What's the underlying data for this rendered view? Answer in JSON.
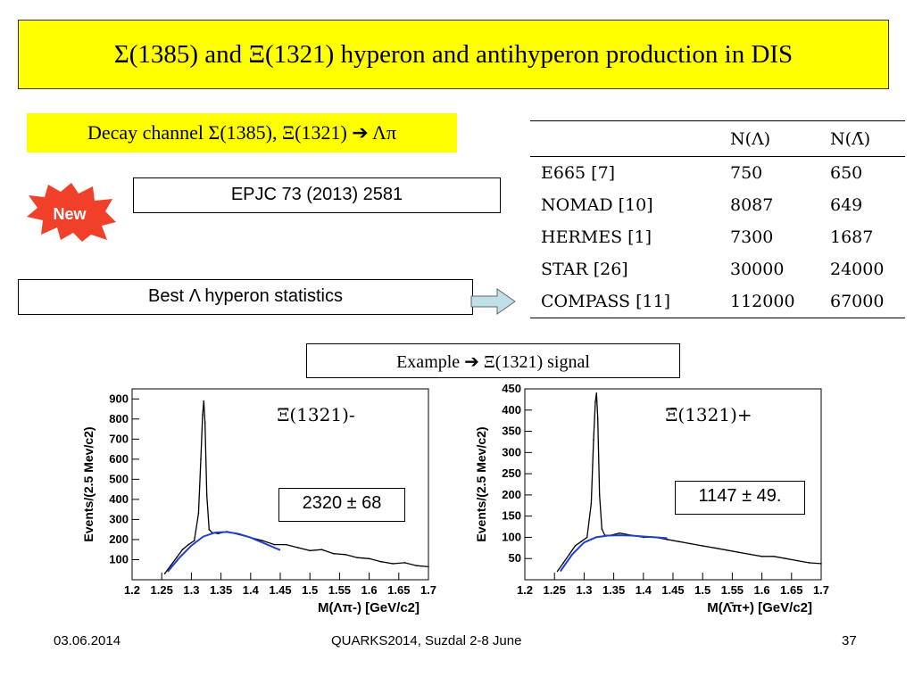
{
  "slide": {
    "title": "Σ(1385) and Ξ(1321) hyperon and antihyperon production in DIS",
    "decay_channel": "Decay channel Σ(1385), Ξ(1321) ➔ Λπ",
    "new_badge": "New",
    "reference": "EPJC 73 (2013) 2581",
    "best_statistics": "Best Λ hyperon statistics",
    "example": "Example ➔ Ξ(1321) signal"
  },
  "table": {
    "headers": [
      "",
      "N(Λ)",
      "N(Λ̄)"
    ],
    "rows": [
      {
        "exp": "E665 [7]",
        "n_lambda": "750",
        "n_antilambda": "650"
      },
      {
        "exp": "NOMAD [10]",
        "n_lambda": "8087",
        "n_antilambda": "649"
      },
      {
        "exp": "HERMES [1]",
        "n_lambda": "7300",
        "n_antilambda": "1687"
      },
      {
        "exp": "STAR [26]",
        "n_lambda": "30000",
        "n_antilambda": "24000"
      },
      {
        "exp": "COMPASS [11]",
        "n_lambda": "112000",
        "n_antilambda": "67000"
      }
    ]
  },
  "yields": {
    "left": "2320  ± 68",
    "right": "1147  ± 49."
  },
  "footer": {
    "date": "03.06.2014",
    "conference": "QUARKS2014, Suzdal 2-8 June",
    "page": "37"
  },
  "chart_data": [
    {
      "type": "line",
      "label": "Ξ(1321)-",
      "ylabel": "Events/(2.5 Mev/c2)",
      "xlabel": "M(Λπ-) [GeV/c2]",
      "xlim": [
        1.2,
        1.7
      ],
      "ylim": [
        0,
        950
      ],
      "xticks": [
        "1.2",
        "1.25",
        "1.3",
        "1.35",
        "1.4",
        "1.45",
        "1.5",
        "1.55",
        "1.6",
        "1.65",
        "1.7"
      ],
      "yticks": [
        "100",
        "200",
        "300",
        "400",
        "500",
        "600",
        "700",
        "800",
        "900"
      ],
      "series": [
        {
          "x": [
            1.255,
            1.265,
            1.275,
            1.285,
            1.295,
            1.305,
            1.312,
            1.316,
            1.319,
            1.321,
            1.323,
            1.326,
            1.33,
            1.335,
            1.345,
            1.36,
            1.38,
            1.4,
            1.42,
            1.44,
            1.46,
            1.48,
            1.5,
            1.52,
            1.54,
            1.56,
            1.58,
            1.6,
            1.62,
            1.64,
            1.66,
            1.68,
            1.7
          ],
          "y": [
            30,
            70,
            110,
            150,
            175,
            195,
            330,
            600,
            820,
            890,
            780,
            420,
            250,
            235,
            230,
            240,
            225,
            210,
            195,
            175,
            175,
            160,
            145,
            150,
            130,
            125,
            110,
            105,
            90,
            80,
            85,
            70,
            65
          ]
        },
        {
          "x": [
            1.26,
            1.28,
            1.3,
            1.32,
            1.34,
            1.36,
            1.38,
            1.4,
            1.42,
            1.44,
            1.45
          ],
          "y": [
            40,
            110,
            170,
            215,
            235,
            238,
            228,
            210,
            185,
            160,
            148
          ]
        }
      ],
      "colors": {
        "data": "#000000",
        "fit": "#1f3fcc"
      }
    },
    {
      "type": "line",
      "label": "Ξ̄(1321)+",
      "ylabel": "Events/(2.5 Mev/c2)",
      "xlabel": "M(Λ̄π+) [GeV/c2]",
      "xlim": [
        1.2,
        1.7
      ],
      "ylim": [
        0,
        450
      ],
      "xticks": [
        "1.2",
        "1.25",
        "1.3",
        "1.35",
        "1.4",
        "1.45",
        "1.5",
        "1.55",
        "1.6",
        "1.65",
        "1.7"
      ],
      "yticks": [
        "50",
        "100",
        "150",
        "200",
        "250",
        "300",
        "350",
        "400",
        "450"
      ],
      "series": [
        {
          "x": [
            1.255,
            1.265,
            1.275,
            1.285,
            1.295,
            1.305,
            1.312,
            1.316,
            1.319,
            1.321,
            1.323,
            1.326,
            1.33,
            1.335,
            1.345,
            1.36,
            1.38,
            1.4,
            1.42,
            1.44,
            1.46,
            1.48,
            1.5,
            1.52,
            1.54,
            1.56,
            1.58,
            1.6,
            1.62,
            1.64,
            1.66,
            1.68,
            1.7
          ],
          "y": [
            20,
            40,
            60,
            80,
            90,
            100,
            180,
            330,
            420,
            440,
            380,
            200,
            120,
            105,
            105,
            110,
            105,
            100,
            100,
            95,
            90,
            85,
            80,
            75,
            70,
            65,
            60,
            55,
            55,
            50,
            45,
            40,
            38
          ]
        },
        {
          "x": [
            1.26,
            1.28,
            1.3,
            1.32,
            1.34,
            1.36,
            1.38,
            1.4,
            1.42,
            1.44
          ],
          "y": [
            20,
            60,
            88,
            100,
            104,
            105,
            104,
            102,
            100,
            98
          ]
        }
      ],
      "colors": {
        "data": "#000000",
        "fit": "#1f3fcc"
      }
    }
  ]
}
